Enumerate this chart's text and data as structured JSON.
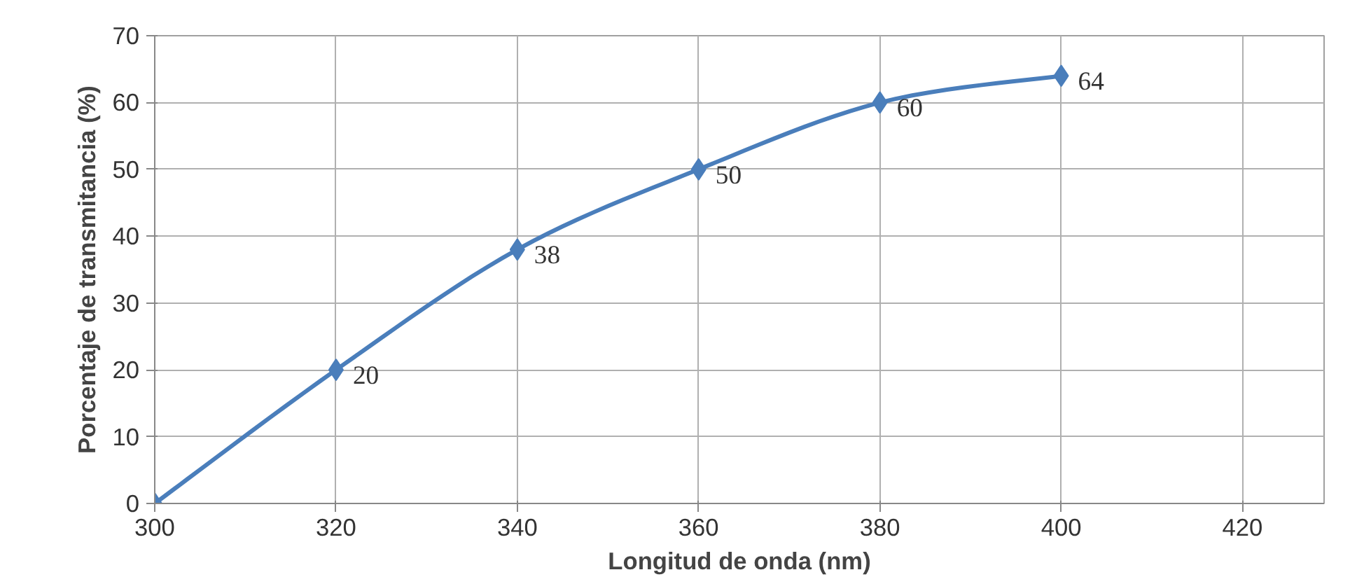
{
  "chart_data": {
    "type": "line",
    "xlabel": "Longitud de onda (nm)",
    "ylabel": "Porcentaje de transmitancia (%)",
    "x": [
      300,
      320,
      340,
      360,
      380,
      400
    ],
    "series": [
      {
        "color": "#4a7ebb",
        "values": [
          0,
          20,
          38,
          50,
          60,
          64
        ],
        "value_labels": [
          null,
          "20",
          "38",
          "50",
          "60",
          "64"
        ]
      }
    ],
    "xlim": [
      300,
      429
    ],
    "xticks": [
      300,
      320,
      340,
      360,
      380,
      400,
      420
    ],
    "ylim": [
      0,
      70
    ],
    "yticks": [
      0,
      10,
      20,
      30,
      40,
      50,
      60,
      70
    ],
    "grid": true,
    "marker": "diamond",
    "line_style": "solid"
  }
}
